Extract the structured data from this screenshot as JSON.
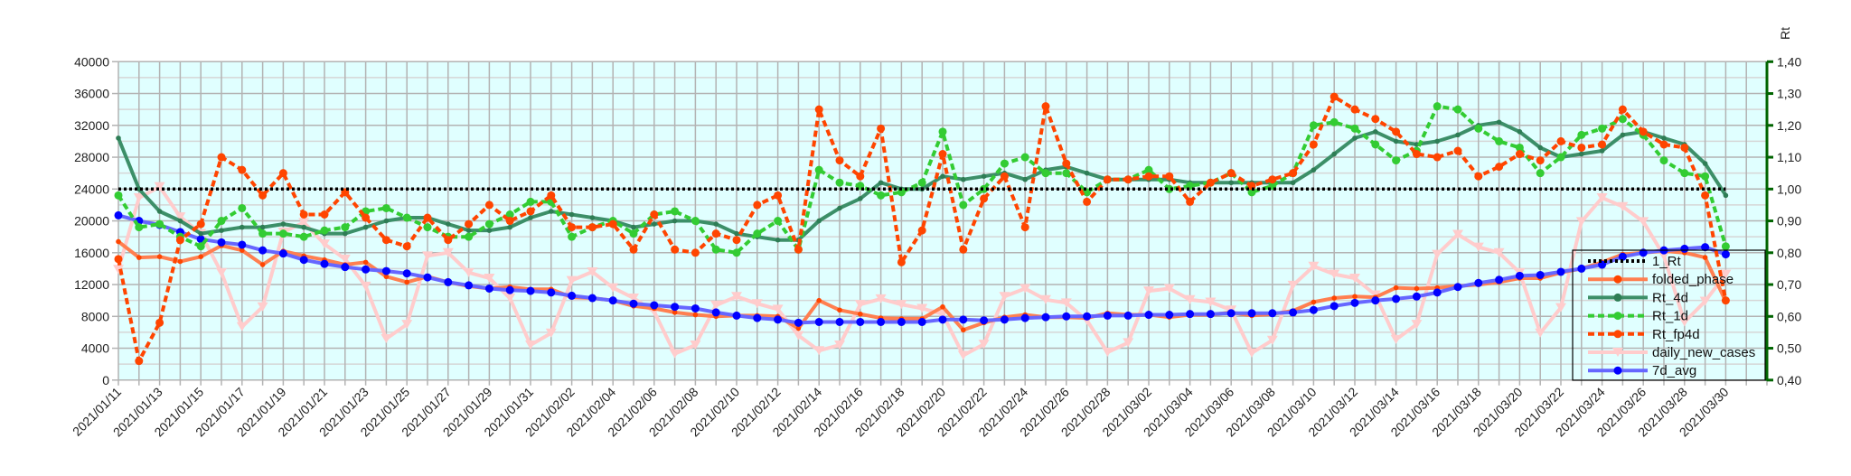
{
  "chart_data": {
    "type": "line",
    "title": "",
    "xlabel": "",
    "ylabel": "",
    "y2label": "Rt",
    "x_start": "2021/01/11",
    "x_step_days": 1,
    "x_tick_labels": [
      "2021/01/11",
      "2021/01/13",
      "2021/01/15",
      "2021/01/17",
      "2021/01/19",
      "2021/01/21",
      "2021/01/23",
      "2021/01/25",
      "2021/01/27",
      "2021/01/29",
      "2021/01/31",
      "2021/02/02",
      "2021/02/04",
      "2021/02/06",
      "2021/02/08",
      "2021/02/10",
      "2021/02/12",
      "2021/02/14",
      "2021/02/16",
      "2021/02/18",
      "2021/02/20",
      "2021/02/22",
      "2021/02/24",
      "2021/02/26",
      "2021/02/28",
      "2021/03/02",
      "2021/03/04",
      "2021/03/06",
      "2021/03/08",
      "2021/03/10",
      "2021/03/12",
      "2021/03/14",
      "2021/03/16",
      "2021/03/18",
      "2021/03/20",
      "2021/03/22",
      "2021/03/24",
      "2021/03/26",
      "2021/03/28",
      "2021/03/30"
    ],
    "ylim": [
      0,
      40000
    ],
    "y_ticks": [
      "0",
      "4000",
      "8000",
      "12000",
      "16000",
      "20000",
      "24000",
      "28000",
      "32000",
      "36000",
      "40000"
    ],
    "y2lim": [
      0.4,
      1.4
    ],
    "y2_ticks": [
      "0,40",
      "0,50",
      "0,60",
      "0,70",
      "0,80",
      "0,90",
      "1,00",
      "1,10",
      "1,20",
      "1,30",
      "1,40"
    ],
    "grid": true,
    "legend_position": "bottom-right",
    "series": [
      {
        "name": "daily_new_cases",
        "axis": "left",
        "color": "#ffcccc",
        "marker_color": "#ffcccc",
        "marker": "triangle-down",
        "dash": "solid",
        "values": [
          13900,
          22900,
          24300,
          20500,
          18400,
          13500,
          6700,
          9200,
          18600,
          19800,
          17100,
          15200,
          11800,
          5200,
          7000,
          15600,
          16000,
          13500,
          12800,
          10300,
          4400,
          5900,
          12500,
          13600,
          11600,
          10300,
          8600,
          3300,
          4400,
          9400,
          10500,
          9600,
          8900,
          5600,
          3700,
          4400,
          9500,
          10200,
          9500,
          9000,
          8300,
          3100,
          4500,
          10500,
          11500,
          10100,
          9700,
          7500,
          3500,
          4700,
          11200,
          11500,
          10100,
          9800,
          8800,
          3400,
          5000,
          11900,
          14300,
          13300,
          12800,
          10700,
          5100,
          7000,
          15800,
          18300,
          16700,
          16000,
          13500,
          5900,
          9100,
          19900,
          22900,
          21800,
          19900,
          15600,
          7300,
          9900,
          13300
        ]
      },
      {
        "name": "folded_phase",
        "axis": "left",
        "color": "#ff7f50",
        "marker_color": "#ff4500",
        "marker": "circle-small",
        "dash": "solid",
        "values": [
          17400,
          15400,
          15500,
          14900,
          15500,
          16900,
          16300,
          14500,
          16200,
          15600,
          15100,
          14500,
          14800,
          13000,
          12300,
          13000,
          12300,
          11800,
          11500,
          11700,
          11400,
          11400,
          10400,
          10300,
          10000,
          9300,
          9000,
          8500,
          8200,
          8000,
          8100,
          8100,
          8000,
          6500,
          10000,
          8800,
          8300,
          7800,
          7700,
          7700,
          9200,
          6300,
          7200,
          7900,
          8200,
          7900,
          7900,
          7800,
          8400,
          8200,
          8200,
          7900,
          8200,
          8200,
          8500,
          8100,
          8300,
          8700,
          9800,
          10300,
          10500,
          10400,
          11600,
          11500,
          11600,
          11800,
          12000,
          12300,
          12800,
          12800,
          13500,
          14000,
          14800,
          15800,
          16000,
          16200,
          16000,
          15400,
          9900
        ]
      },
      {
        "name": "7d_avg",
        "axis": "left",
        "color": "#6666ff",
        "marker_color": "#0000ff",
        "marker": "circle",
        "dash": "solid",
        "values": [
          20700,
          20000,
          19500,
          18600,
          17700,
          17300,
          17000,
          16300,
          15900,
          15100,
          14600,
          14200,
          13900,
          13700,
          13400,
          12900,
          12300,
          11900,
          11500,
          11300,
          11200,
          11000,
          10600,
          10300,
          10000,
          9600,
          9400,
          9200,
          9000,
          8500,
          8100,
          7800,
          7600,
          7200,
          7300,
          7300,
          7300,
          7300,
          7300,
          7300,
          7600,
          7600,
          7500,
          7600,
          7800,
          7900,
          8000,
          8000,
          8100,
          8100,
          8200,
          8200,
          8300,
          8300,
          8400,
          8400,
          8400,
          8500,
          8800,
          9300,
          9700,
          10000,
          10200,
          10500,
          11000,
          11700,
          12200,
          12600,
          13100,
          13200,
          13600,
          14000,
          14500,
          15500,
          16000,
          16300,
          16500,
          16700,
          15800
        ]
      },
      {
        "name": "Rt_4d",
        "axis": "right",
        "color": "#3c8f68",
        "marker_color": "#2e7d55",
        "marker": "circle-small",
        "dash": "solid",
        "values": [
          1.16,
          1.0,
          0.93,
          0.9,
          0.86,
          0.87,
          0.88,
          0.88,
          0.89,
          0.88,
          0.86,
          0.86,
          0.88,
          0.9,
          0.91,
          0.91,
          0.89,
          0.87,
          0.87,
          0.88,
          0.91,
          0.93,
          0.92,
          0.91,
          0.9,
          0.88,
          0.89,
          0.9,
          0.9,
          0.89,
          0.86,
          0.85,
          0.84,
          0.84,
          0.9,
          0.94,
          0.97,
          1.02,
          1.0,
          1.0,
          1.04,
          1.03,
          1.04,
          1.05,
          1.03,
          1.06,
          1.07,
          1.05,
          1.03,
          1.03,
          1.03,
          1.03,
          1.02,
          1.02,
          1.02,
          1.02,
          1.02,
          1.02,
          1.06,
          1.11,
          1.16,
          1.18,
          1.15,
          1.14,
          1.15,
          1.17,
          1.2,
          1.21,
          1.18,
          1.13,
          1.1,
          1.11,
          1.12,
          1.17,
          1.18,
          1.16,
          1.14,
          1.08,
          0.98
        ]
      },
      {
        "name": "Rt_1d",
        "axis": "right",
        "color": "#33cc33",
        "marker_color": "#33cc33",
        "marker": "circle",
        "dash": "dashed",
        "values": [
          0.98,
          0.88,
          0.89,
          0.85,
          0.82,
          0.9,
          0.94,
          0.86,
          0.86,
          0.85,
          0.87,
          0.88,
          0.93,
          0.94,
          0.91,
          0.88,
          0.85,
          0.85,
          0.89,
          0.92,
          0.96,
          0.96,
          0.85,
          0.88,
          0.9,
          0.86,
          0.92,
          0.93,
          0.9,
          0.81,
          0.8,
          0.86,
          0.9,
          0.81,
          1.06,
          1.02,
          1.01,
          0.98,
          0.99,
          1.02,
          1.18,
          0.95,
          1.0,
          1.08,
          1.1,
          1.05,
          1.05,
          0.99,
          1.03,
          1.03,
          1.06,
          1.0,
          1.01,
          1.02,
          1.05,
          0.99,
          1.01,
          1.05,
          1.2,
          1.21,
          1.19,
          1.14,
          1.09,
          1.12,
          1.26,
          1.25,
          1.19,
          1.15,
          1.13,
          1.05,
          1.1,
          1.17,
          1.19,
          1.22,
          1.17,
          1.09,
          1.05,
          1.04,
          0.82
        ]
      },
      {
        "name": "Rt_fp4d",
        "axis": "right",
        "color": "#ff4500",
        "marker_color": "#ff4500",
        "marker": "circle",
        "dash": "dashed",
        "values": [
          0.78,
          0.46,
          0.58,
          0.84,
          0.89,
          1.1,
          1.06,
          0.98,
          1.05,
          0.92,
          0.92,
          0.99,
          0.91,
          0.84,
          0.82,
          0.91,
          0.84,
          0.89,
          0.95,
          0.9,
          0.93,
          0.98,
          0.88,
          0.88,
          0.89,
          0.81,
          0.92,
          0.81,
          0.8,
          0.86,
          0.84,
          0.95,
          0.98,
          0.81,
          1.25,
          1.09,
          1.04,
          1.19,
          0.77,
          0.87,
          1.11,
          0.81,
          0.97,
          1.04,
          0.88,
          1.26,
          1.08,
          0.96,
          1.03,
          1.03,
          1.04,
          1.04,
          0.96,
          1.02,
          1.05,
          1.01,
          1.03,
          1.05,
          1.14,
          1.29,
          1.25,
          1.22,
          1.18,
          1.11,
          1.1,
          1.12,
          1.04,
          1.07,
          1.11,
          1.09,
          1.15,
          1.13,
          1.14,
          1.25,
          1.18,
          1.14,
          1.13,
          0.98,
          0.65
        ]
      },
      {
        "name": "1_Rt",
        "axis": "right",
        "color": "#000000",
        "marker_color": "#000000",
        "marker": "none",
        "dash": "dotted",
        "values": [
          1,
          1,
          1,
          1,
          1,
          1,
          1,
          1,
          1,
          1,
          1,
          1,
          1,
          1,
          1,
          1,
          1,
          1,
          1,
          1,
          1,
          1,
          1,
          1,
          1,
          1,
          1,
          1,
          1,
          1,
          1,
          1,
          1,
          1,
          1,
          1,
          1,
          1,
          1,
          1,
          1,
          1,
          1,
          1,
          1,
          1,
          1,
          1,
          1,
          1,
          1,
          1,
          1,
          1,
          1,
          1,
          1,
          1,
          1,
          1,
          1,
          1,
          1,
          1,
          1,
          1,
          1,
          1,
          1,
          1,
          1,
          1,
          1,
          1,
          1,
          1,
          1,
          1,
          1
        ]
      }
    ],
    "legend_order": [
      "1_Rt",
      "folded_phase",
      "Rt_4d",
      "Rt_1d",
      "Rt_fp4d",
      "daily_new_cases",
      "7d_avg"
    ]
  },
  "colors": {
    "plot_background": "#e0ffff",
    "grid_major": "#b3b3b3",
    "grid_minor": "#d6d6d6",
    "right_axis": "#006400"
  }
}
